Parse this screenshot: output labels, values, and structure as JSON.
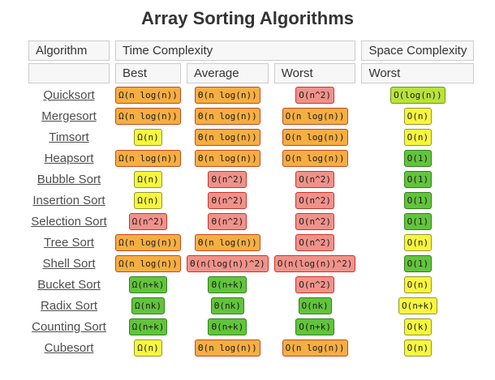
{
  "page": {
    "title": "Array Sorting Algorithms"
  },
  "table": {
    "header": {
      "algorithm": "Algorithm",
      "time_complexity": "Time Complexity",
      "space_complexity": "Space Complexity",
      "best": "Best",
      "average": "Average",
      "worst": "Worst",
      "space_worst": "Worst"
    },
    "rows": [
      {
        "name": "Quicksort",
        "best": {
          "text": "Ω(n log(n))",
          "level": "orange"
        },
        "average": {
          "text": "Θ(n log(n))",
          "level": "orange"
        },
        "worst": {
          "text": "O(n^2)",
          "level": "red"
        },
        "space": {
          "text": "O(log(n))",
          "level": "yellowgreen"
        }
      },
      {
        "name": "Mergesort",
        "best": {
          "text": "Ω(n log(n))",
          "level": "orange"
        },
        "average": {
          "text": "Θ(n log(n))",
          "level": "orange"
        },
        "worst": {
          "text": "O(n log(n))",
          "level": "orange"
        },
        "space": {
          "text": "O(n)",
          "level": "yellow"
        }
      },
      {
        "name": "Timsort",
        "best": {
          "text": "Ω(n)",
          "level": "yellow"
        },
        "average": {
          "text": "Θ(n log(n))",
          "level": "orange"
        },
        "worst": {
          "text": "O(n log(n))",
          "level": "orange"
        },
        "space": {
          "text": "O(n)",
          "level": "yellow"
        }
      },
      {
        "name": "Heapsort",
        "best": {
          "text": "Ω(n log(n))",
          "level": "orange"
        },
        "average": {
          "text": "Θ(n log(n))",
          "level": "orange"
        },
        "worst": {
          "text": "O(n log(n))",
          "level": "orange"
        },
        "space": {
          "text": "O(1)",
          "level": "green"
        }
      },
      {
        "name": "Bubble Sort",
        "best": {
          "text": "Ω(n)",
          "level": "yellow"
        },
        "average": {
          "text": "Θ(n^2)",
          "level": "red"
        },
        "worst": {
          "text": "O(n^2)",
          "level": "red"
        },
        "space": {
          "text": "O(1)",
          "level": "green"
        }
      },
      {
        "name": "Insertion Sort",
        "best": {
          "text": "Ω(n)",
          "level": "yellow"
        },
        "average": {
          "text": "Θ(n^2)",
          "level": "red"
        },
        "worst": {
          "text": "O(n^2)",
          "level": "red"
        },
        "space": {
          "text": "O(1)",
          "level": "green"
        }
      },
      {
        "name": "Selection Sort",
        "best": {
          "text": "Ω(n^2)",
          "level": "red"
        },
        "average": {
          "text": "Θ(n^2)",
          "level": "red"
        },
        "worst": {
          "text": "O(n^2)",
          "level": "red"
        },
        "space": {
          "text": "O(1)",
          "level": "green"
        }
      },
      {
        "name": "Tree Sort",
        "best": {
          "text": "Ω(n log(n))",
          "level": "orange"
        },
        "average": {
          "text": "Θ(n log(n))",
          "level": "orange"
        },
        "worst": {
          "text": "O(n^2)",
          "level": "red"
        },
        "space": {
          "text": "O(n)",
          "level": "yellow"
        }
      },
      {
        "name": "Shell Sort",
        "best": {
          "text": "Ω(n log(n))",
          "level": "orange"
        },
        "average": {
          "text": "Θ(n(log(n))^2)",
          "level": "red"
        },
        "worst": {
          "text": "O(n(log(n))^2)",
          "level": "red"
        },
        "space": {
          "text": "O(1)",
          "level": "green"
        }
      },
      {
        "name": "Bucket Sort",
        "best": {
          "text": "Ω(n+k)",
          "level": "green"
        },
        "average": {
          "text": "Θ(n+k)",
          "level": "green"
        },
        "worst": {
          "text": "O(n^2)",
          "level": "red"
        },
        "space": {
          "text": "O(n)",
          "level": "yellow"
        }
      },
      {
        "name": "Radix Sort",
        "best": {
          "text": "Ω(nk)",
          "level": "green"
        },
        "average": {
          "text": "Θ(nk)",
          "level": "green"
        },
        "worst": {
          "text": "O(nk)",
          "level": "green"
        },
        "space": {
          "text": "O(n+k)",
          "level": "yellow"
        }
      },
      {
        "name": "Counting Sort",
        "best": {
          "text": "Ω(n+k)",
          "level": "green"
        },
        "average": {
          "text": "Θ(n+k)",
          "level": "green"
        },
        "worst": {
          "text": "O(n+k)",
          "level": "green"
        },
        "space": {
          "text": "O(k)",
          "level": "yellow"
        }
      },
      {
        "name": "Cubesort",
        "best": {
          "text": "Ω(n)",
          "level": "yellow"
        },
        "average": {
          "text": "Θ(n log(n))",
          "level": "orange"
        },
        "worst": {
          "text": "O(n log(n))",
          "level": "orange"
        },
        "space": {
          "text": "O(n)",
          "level": "yellow"
        }
      }
    ]
  },
  "colors": {
    "red": {
      "bg": "#F0928A",
      "border": "#C9352B"
    },
    "orange": {
      "bg": "#F5AE41",
      "border": "#C2481F"
    },
    "yellow": {
      "bg": "#F6F63F",
      "border": "#96962C"
    },
    "yellowgreen": {
      "bg": "#BAE23B",
      "border": "#5C9E13"
    },
    "green": {
      "bg": "#62C43C",
      "border": "#2E821B"
    }
  }
}
